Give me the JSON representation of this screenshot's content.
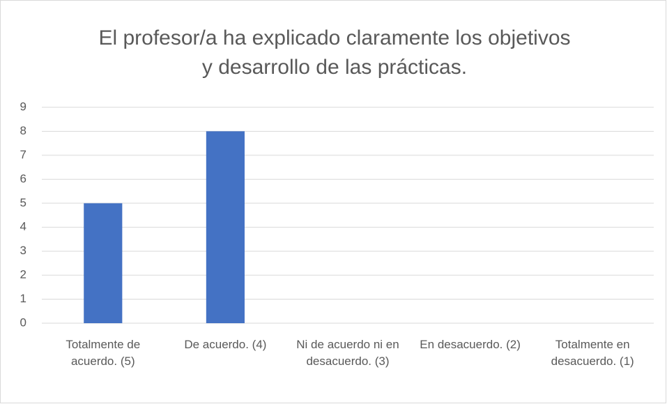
{
  "chart_data": {
    "type": "bar",
    "title": "El profesor/a ha explicado claramente los objetivos y desarrollo de las prácticas.",
    "categories": [
      "Totalmente de acuerdo. (5)",
      "De acuerdo. (4)",
      "Ni de acuerdo ni en desacuerdo. (3)",
      "En desacuerdo. (2)",
      "Totalmente en desacuerdo. (1)"
    ],
    "values": [
      5,
      8,
      0,
      0,
      0
    ],
    "color": "#4472c4",
    "ylim": [
      0,
      9
    ],
    "yticks": [
      0,
      1,
      2,
      3,
      4,
      5,
      6,
      7,
      8,
      9
    ],
    "grid": true
  }
}
